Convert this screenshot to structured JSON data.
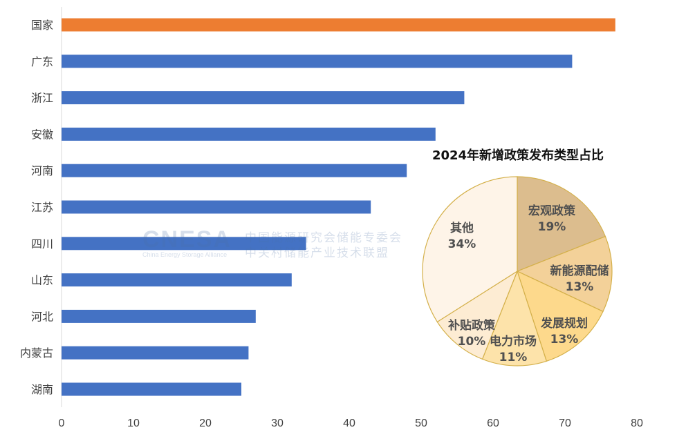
{
  "chart_data": [
    {
      "type": "bar",
      "orientation": "horizontal",
      "categories": [
        "国家",
        "广东",
        "浙江",
        "安徽",
        "河南",
        "江苏",
        "四川",
        "山东",
        "河北",
        "内蒙古",
        "湖南"
      ],
      "values": [
        77,
        71,
        56,
        52,
        48,
        43,
        34,
        32,
        27,
        26,
        25
      ],
      "xlim": [
        0,
        80
      ],
      "xticks": [
        0,
        10,
        20,
        30,
        40,
        50,
        60,
        70,
        80
      ],
      "grid": false,
      "colors": {
        "default": "#4472c4",
        "highlight": "#ed7d31"
      },
      "highlight_category": "国家"
    },
    {
      "type": "pie",
      "title": "2024年新增政策发布类型占比",
      "labels": [
        "宏观政策",
        "新能源配储",
        "发展规划",
        "电力市场",
        "补贴政策",
        "其他"
      ],
      "values": [
        19,
        13,
        13,
        11,
        10,
        34
      ],
      "value_labels": [
        "19%",
        "13%",
        "13%",
        "11%",
        "10%",
        "34%"
      ],
      "colors": [
        "#dcbd8e",
        "#f3d199",
        "#fdd98c",
        "#fde3aa",
        "#fdecd3",
        "#fef4e8"
      ],
      "border_color": "#d4b04a"
    }
  ],
  "watermark": {
    "logo": "CNESA",
    "name_en": "China Energy Storage Alliance",
    "line1": "中国能源研究会储能专委会",
    "line2": "中关村储能产业技术联盟"
  }
}
